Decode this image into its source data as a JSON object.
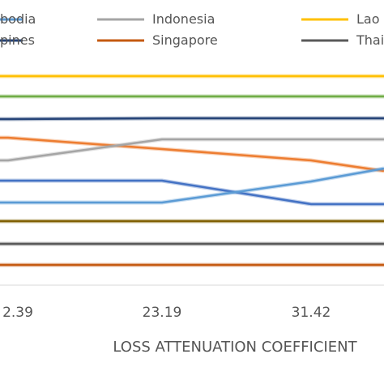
{
  "chart_data": {
    "type": "line",
    "xlabel": "LOSS ATTENUATION COEFFICIENT",
    "ylabel": "",
    "categories": [
      "2.39",
      "23.19",
      "31.42",
      ""
    ],
    "category_labels": [
      "2.39",
      "23.19",
      "31.42"
    ],
    "legend_rows": [
      [
        {
          "label": "bodia",
          "color": "#5b9bd5"
        },
        {
          "label": "Indonesia",
          "color": "#a5a5a5"
        },
        {
          "label": "Lao P",
          "color": "#ffc000"
        }
      ],
      [
        {
          "label": "pines",
          "color": "#264478"
        },
        {
          "label": "Singapore",
          "color": "#c55a11"
        },
        {
          "label": "Thail",
          "color": "#595959"
        }
      ]
    ],
    "series": [
      {
        "values": [
          94,
          94,
          94,
          94
        ],
        "color": "#ffc000"
      },
      {
        "values": [
          119,
          119,
          119,
          119
        ],
        "color": "#70ad47"
      },
      {
        "values": [
          147,
          146,
          146,
          146
        ],
        "color": "#264478"
      },
      {
        "values": [
          170,
          184,
          198,
          211
        ],
        "color": "#ed7d31"
      },
      {
        "values": [
          198,
          172,
          172,
          172
        ],
        "color": "#a5a5a5"
      },
      {
        "values": [
          223,
          223,
          252,
          252
        ],
        "color": "#4472c4"
      },
      {
        "values": [
          250,
          250,
          224,
          208
        ],
        "color": "#5b9bd5"
      },
      {
        "values": [
          273,
          273,
          273,
          273
        ],
        "color": "#806000"
      },
      {
        "values": [
          301,
          301,
          301,
          301
        ],
        "color": "#595959"
      },
      {
        "values": [
          327,
          327,
          327,
          327
        ],
        "color": "#c55a11"
      }
    ]
  }
}
